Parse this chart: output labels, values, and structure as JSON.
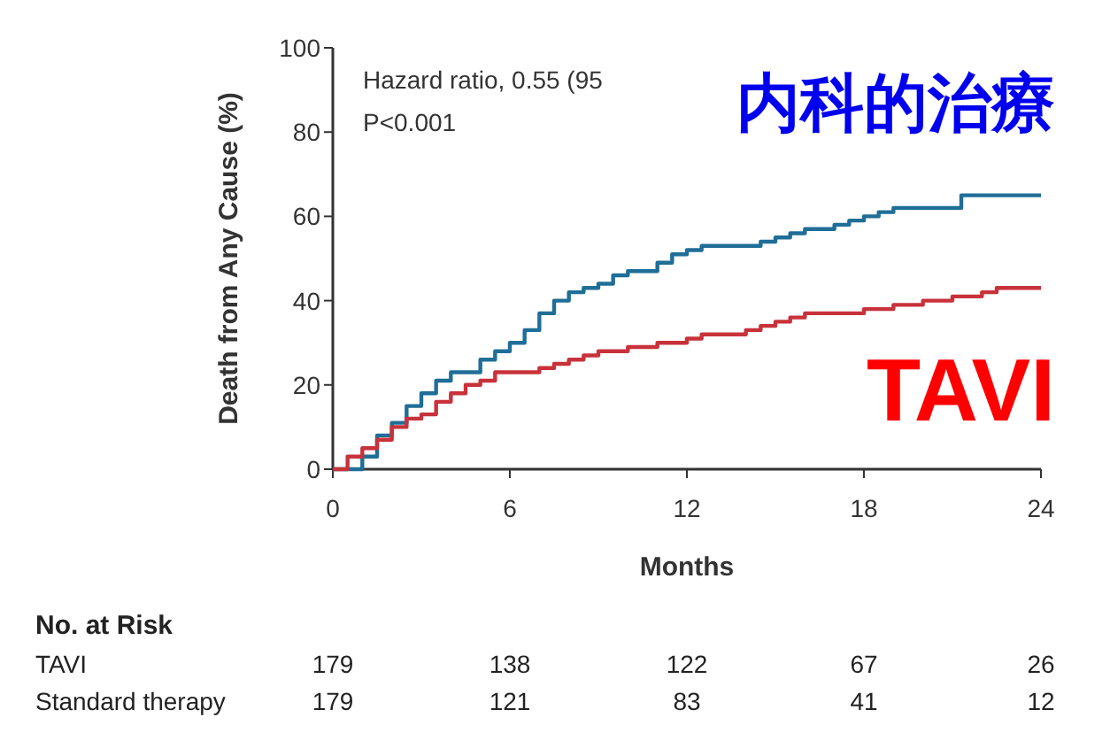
{
  "chart_data": {
    "type": "step",
    "xlabel": "Months",
    "ylabel": "Death from Any Cause (%)",
    "xlim": [
      0,
      24
    ],
    "xticks": [
      0,
      6,
      12,
      18,
      24
    ],
    "ylim": [
      0,
      100
    ],
    "yticks": [
      0,
      20,
      40,
      60,
      80,
      100
    ],
    "series": [
      {
        "name": "内科的治療",
        "color": "#1f6e98",
        "x": [
          0,
          1,
          1.5,
          2,
          2.5,
          3,
          3.5,
          4,
          4.5,
          5,
          5.5,
          6,
          6.5,
          7,
          7.5,
          8,
          8.5,
          9,
          9.5,
          10,
          10.5,
          11,
          11.5,
          12,
          12.5,
          13,
          14,
          14.5,
          15,
          15.5,
          16,
          17,
          17.5,
          18,
          18.5,
          19,
          20,
          21,
          21.3,
          22,
          24
        ],
        "values": [
          0,
          3,
          8,
          11,
          15,
          18,
          21,
          23,
          23,
          26,
          28,
          30,
          33,
          37,
          40,
          42,
          43,
          44,
          46,
          47,
          47,
          49,
          51,
          52,
          53,
          53,
          53,
          54,
          55,
          56,
          57,
          58,
          59,
          60,
          61,
          62,
          62,
          62,
          65,
          65,
          65
        ]
      },
      {
        "name": "TAVI",
        "color": "#c8323a",
        "x": [
          0,
          0.5,
          1,
          1.5,
          2,
          2.5,
          3,
          3.5,
          4,
          4.5,
          5,
          5.5,
          6,
          7,
          7.5,
          8,
          8.5,
          9,
          10,
          11,
          12,
          12.5,
          13,
          14,
          14.5,
          15,
          15.5,
          16,
          17,
          18,
          19,
          20,
          21,
          22,
          22.5,
          24
        ],
        "values": [
          0,
          3,
          5,
          7,
          10,
          12,
          13,
          16,
          18,
          20,
          21,
          23,
          23,
          24,
          25,
          26,
          27,
          28,
          29,
          30,
          31,
          32,
          32,
          33,
          34,
          35,
          36,
          37,
          37,
          38,
          39,
          40,
          41,
          42,
          43,
          43
        ]
      }
    ],
    "annotations": [
      "Hazard ratio, 0.55 (95",
      "P<0.001",
      "No. at Risk",
      "TAVI",
      "179",
      "138",
      "122",
      "67",
      "26",
      "Standard therapy",
      "179",
      "121",
      "83",
      "41",
      "12"
    ],
    "grid": false
  }
}
